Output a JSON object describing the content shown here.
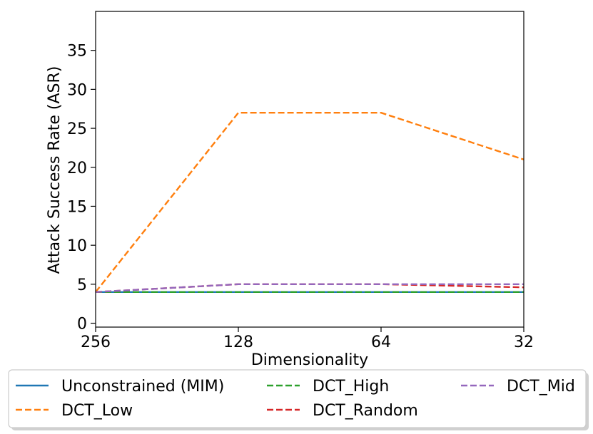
{
  "chart_data": {
    "type": "line",
    "title": "",
    "xlabel": "Dimensionality",
    "ylabel": "Attack Success Rate (ASR)",
    "x_ticks": [
      "256",
      "128",
      "64",
      "32"
    ],
    "y_ticks": [
      "0",
      "5",
      "10",
      "15",
      "20",
      "25",
      "30",
      "35"
    ],
    "ylim": [
      -0.5,
      40
    ],
    "grid": false,
    "legend_position": "below plot, 3 columns",
    "series": [
      {
        "name": "Unconstrained (MIM)",
        "x": [
          "256",
          "128",
          "64",
          "32"
        ],
        "values": [
          4,
          4,
          4,
          4
        ],
        "color": "#1f77b4",
        "style": "solid"
      },
      {
        "name": "DCT_Low",
        "x": [
          "256",
          "128",
          "64",
          "32"
        ],
        "values": [
          4,
          27,
          27,
          21
        ],
        "color": "#ff7f0e",
        "style": "dashed"
      },
      {
        "name": "DCT_High",
        "x": [
          "256",
          "128",
          "64",
          "32"
        ],
        "values": [
          4,
          4,
          4,
          4
        ],
        "color": "#2ca02c",
        "style": "dashed"
      },
      {
        "name": "DCT_Random",
        "x": [
          "256",
          "128",
          "64",
          "32"
        ],
        "values": [
          4,
          5,
          5,
          4.6
        ],
        "color": "#d62728",
        "style": "dashed"
      },
      {
        "name": "DCT_Mid",
        "x": [
          "256",
          "128",
          "64",
          "32"
        ],
        "values": [
          4,
          5,
          5,
          5
        ],
        "color": "#9467bd",
        "style": "dashed"
      }
    ],
    "legend_order": [
      "Unconstrained (MIM)",
      "DCT_Low",
      "DCT_High",
      "DCT_Random",
      "DCT_Mid"
    ]
  }
}
